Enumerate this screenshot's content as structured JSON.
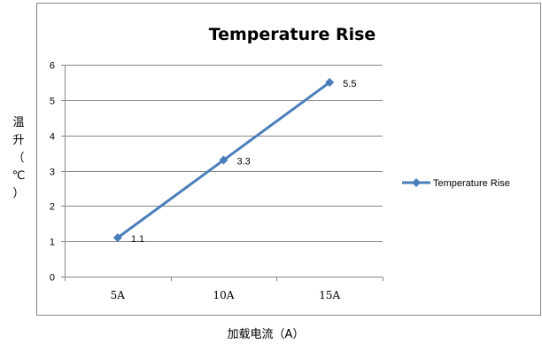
{
  "chart_data": {
    "type": "line",
    "title": "Temperature Rise",
    "xlabel": "加载电流（A）",
    "ylabel": "温升（℃）",
    "categories": [
      "5A",
      "10A",
      "15A"
    ],
    "series": [
      {
        "name": "Temperature Rise",
        "values": [
          1.1,
          3.3,
          5.5
        ],
        "labels": [
          "1.1",
          "3.3",
          "5.5"
        ],
        "color": "#4a7ebb"
      }
    ],
    "ylim": [
      0,
      6
    ],
    "yticks": [
      "0",
      "1",
      "2",
      "3",
      "4",
      "5",
      "6"
    ],
    "grid": true,
    "legend": "right",
    "frame_color": "#868686",
    "grid_color": "#868686"
  }
}
